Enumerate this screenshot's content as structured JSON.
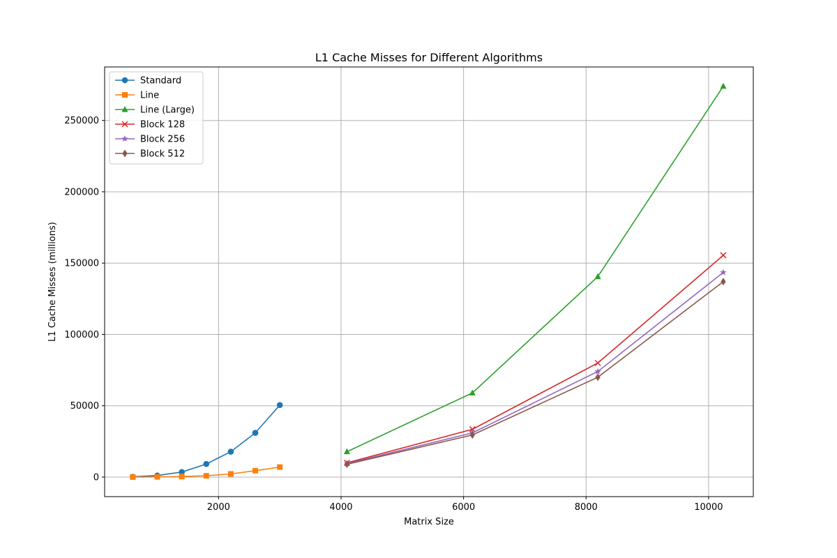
{
  "chart_data": {
    "type": "line",
    "title": "L1 Cache Misses for Different Algorithms",
    "xlabel": "Matrix Size",
    "ylabel": "L1 Cache Misses (millions)",
    "xlim": [
      140,
      10730
    ],
    "ylim": [
      -13700,
      287500
    ],
    "xticks": [
      2000,
      4000,
      6000,
      8000,
      10000
    ],
    "yticks": [
      0,
      50000,
      100000,
      150000,
      200000,
      250000
    ],
    "grid": true,
    "legend_position": "upper-left",
    "series": [
      {
        "name": "Standard",
        "color": "#1f77b4",
        "marker": "circle",
        "x": [
          600,
          1000,
          1400,
          1800,
          2200,
          2600,
          3000
        ],
        "y": [
          200,
          1100,
          3500,
          9200,
          17800,
          31000,
          50500
        ]
      },
      {
        "name": "Line",
        "color": "#ff7f0e",
        "marker": "square",
        "x": [
          600,
          1000,
          1400,
          1800,
          2200,
          2600,
          3000
        ],
        "y": [
          30,
          150,
          400,
          900,
          2200,
          4500,
          7000
        ]
      },
      {
        "name": "Line (Large)",
        "color": "#2ca02c",
        "marker": "triangle",
        "x": [
          4096,
          6144,
          8192,
          10240
        ],
        "y": [
          17800,
          59000,
          140500,
          274000
        ]
      },
      {
        "name": "Block 128",
        "color": "#d62728",
        "marker": "x",
        "x": [
          4096,
          6144,
          8192,
          10240
        ],
        "y": [
          10000,
          33500,
          80000,
          155500
        ]
      },
      {
        "name": "Block 256",
        "color": "#9467bd",
        "marker": "star",
        "x": [
          4096,
          6144,
          8192,
          10240
        ],
        "y": [
          9500,
          31000,
          74000,
          143500
        ]
      },
      {
        "name": "Block 512",
        "color": "#8c564b",
        "marker": "diamond",
        "x": [
          4096,
          6144,
          8192,
          10240
        ],
        "y": [
          9000,
          29500,
          70000,
          137000
        ]
      }
    ]
  }
}
